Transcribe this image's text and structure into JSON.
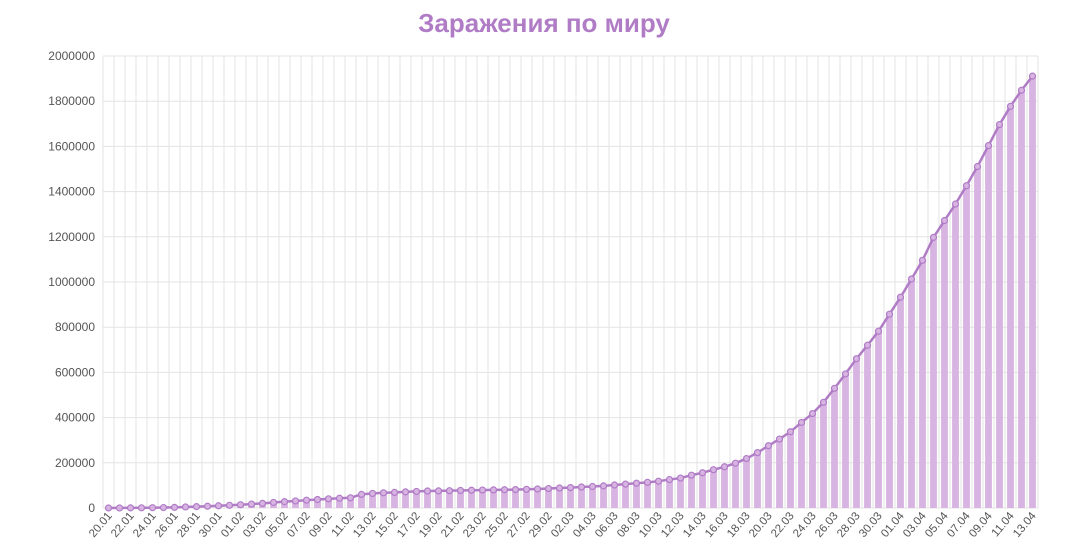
{
  "colors": {
    "title": "#b07cc6",
    "bar_fill": "#d8b4e2",
    "line": "#b07cc6",
    "grid": "#e3e3e3",
    "axis_text": "#555555"
  },
  "chart_data": {
    "type": "bar",
    "title": "Заражения по миру",
    "xlabel": "",
    "ylabel": "",
    "ylim": [
      0,
      2000000
    ],
    "yticks": [
      0,
      200000,
      400000,
      600000,
      800000,
      1000000,
      1200000,
      1400000,
      1600000,
      1800000,
      2000000
    ],
    "grid": true,
    "legend": "none",
    "overlay_line": true,
    "categories": [
      "20.01",
      "21.01",
      "22.01",
      "23.01",
      "24.01",
      "25.01",
      "26.01",
      "27.01",
      "28.01",
      "29.01",
      "30.01",
      "31.01",
      "01.02",
      "02.02",
      "03.02",
      "04.02",
      "05.02",
      "06.02",
      "07.02",
      "08.02",
      "09.02",
      "10.02",
      "11.02",
      "12.02",
      "13.02",
      "14.02",
      "15.02",
      "16.02",
      "17.02",
      "18.02",
      "19.02",
      "20.02",
      "21.02",
      "22.02",
      "23.02",
      "24.02",
      "25.02",
      "26.02",
      "27.02",
      "28.02",
      "29.02",
      "01.03",
      "02.03",
      "03.03",
      "04.03",
      "05.03",
      "06.03",
      "07.03",
      "08.03",
      "09.03",
      "10.03",
      "11.03",
      "12.03",
      "13.03",
      "14.03",
      "15.03",
      "16.03",
      "17.03",
      "18.03",
      "19.03",
      "20.03",
      "21.03",
      "22.03",
      "23.03",
      "24.03",
      "25.03",
      "26.03",
      "27.03",
      "28.03",
      "29.03",
      "30.03",
      "31.03",
      "01.04",
      "02.04",
      "03.04",
      "04.04",
      "05.04",
      "06.04",
      "07.04",
      "08.04",
      "09.04",
      "10.04",
      "11.04",
      "12.04",
      "13.04"
    ],
    "tick_labels": [
      "20.01",
      "22.01",
      "24.01",
      "26.01",
      "28.01",
      "30.01",
      "01.02",
      "03.02",
      "05.02",
      "07.02",
      "09.02",
      "11.02",
      "13.02",
      "15.02",
      "17.02",
      "19.02",
      "21.02",
      "23.02",
      "25.02",
      "27.02",
      "29.02",
      "02.03",
      "04.03",
      "06.03",
      "08.03",
      "10.03",
      "12.03",
      "14.03",
      "16.03",
      "18.03",
      "20.03",
      "22.03",
      "24.03",
      "26.03",
      "28.03",
      "30.03",
      "01.04",
      "03.04",
      "05.04",
      "07.04",
      "09.04",
      "11.04",
      "13.04"
    ],
    "values": [
      282,
      314,
      580,
      845,
      1317,
      2015,
      2800,
      4600,
      6060,
      7800,
      9800,
      11950,
      14550,
      17400,
      20600,
      24550,
      28250,
      31150,
      34550,
      37550,
      40550,
      43100,
      45150,
      60350,
      64450,
      67100,
      69000,
      71300,
      73300,
      75200,
      75700,
      76700,
      77700,
      78600,
      79300,
      80100,
      80800,
      81400,
      82700,
      84100,
      86000,
      88400,
      90300,
      92800,
      95100,
      97900,
      101800,
      105800,
      109800,
      113600,
      118600,
      125900,
      132500,
      145200,
      156100,
      169500,
      182400,
      198200,
      218800,
      244900,
      275600,
      305000,
      337500,
      378500,
      417900,
      467700,
      529700,
      593300,
      660700,
      720100,
      782400,
      857500,
      932600,
      1013200,
      1095900,
      1197400,
      1272100,
      1345100,
      1426100,
      1511100,
      1603700,
      1696600,
      1777400,
      1848400,
      1911000
    ]
  }
}
